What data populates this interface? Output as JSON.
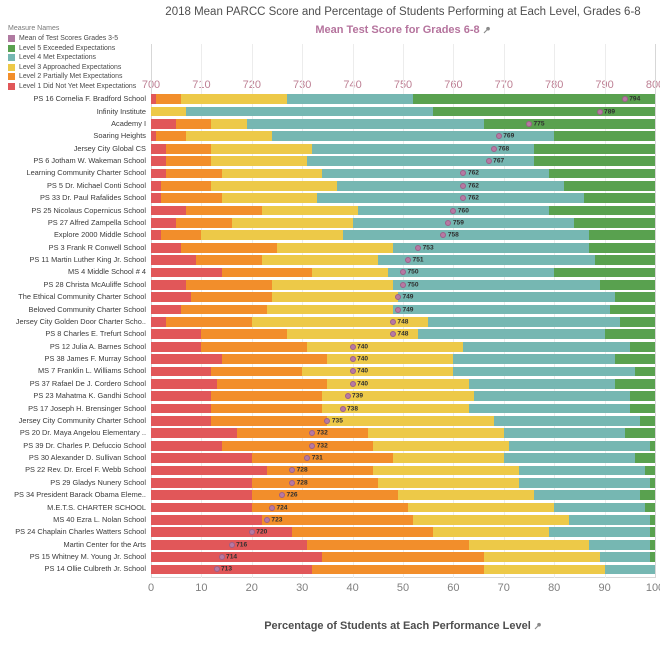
{
  "title": "2018 Mean PARCC Score and Percentage of Students Performing at Each Level, Grades 6-8",
  "legend": {
    "title": "Measure Names",
    "items": [
      {
        "label": "Mean of Test Scores Grades 3-5",
        "color": "#b07aa1"
      },
      {
        "label": "Level 5 Exceeded Expectations",
        "color": "#59a14f"
      },
      {
        "label": "Level 4 Met Expectations",
        "color": "#76b7b2"
      },
      {
        "label": "Level 3 Approached Expectations",
        "color": "#edc948"
      },
      {
        "label": "Level 2 Partially Met Expectations",
        "color": "#f28e2b"
      },
      {
        "label": "Level 1 Did Not Yet Meet Expectations",
        "color": "#e15759"
      }
    ]
  },
  "colors": {
    "level_colors": [
      "#e15759",
      "#f28e2b",
      "#edc948",
      "#76b7b2",
      "#59a14f"
    ],
    "mean_dot": "#b779a3",
    "mean_dot_border": "#9c6089",
    "top_axis_text": "#b5739d",
    "top_tick_text": "#bd7f93",
    "bottom_tick_text": "#7f7f7f"
  },
  "chart_data": {
    "type": "bar",
    "subtype": "100pct-stacked-horizontal-with-mean-score-dots",
    "title": "2018 Mean PARCC Score and Percentage of Students Performing at Each Level, Grades 6-8",
    "legend_position": "top-left",
    "grid": "on",
    "top_axis": {
      "label": "Mean Test Score for Grades 6-8",
      "range": [
        700,
        800
      ],
      "ticks": [
        700,
        710,
        720,
        730,
        740,
        750,
        760,
        770,
        780,
        790,
        800
      ]
    },
    "bottom_axis": {
      "label": "Percentage of Students at Each Performance Level",
      "range": [
        0,
        100
      ],
      "ticks": [
        0,
        10,
        20,
        30,
        40,
        50,
        60,
        70,
        80,
        90,
        100
      ]
    },
    "stack_series_order": [
      "Level 1 Did Not Yet Meet Expectations",
      "Level 2 Partially Met Expectations",
      "Level 3 Approached Expectations",
      "Level 4 Met Expectations",
      "Level 5 Exceeded Expectations"
    ],
    "dot_series": "Mean of Test Scores Grades 3-5",
    "rows": [
      {
        "school": "PS 16 Cornelia F. Bradford School",
        "mean_score": 794,
        "levels": [
          1,
          5,
          21,
          25,
          48
        ]
      },
      {
        "school": "Infinity Institute",
        "mean_score": 789,
        "levels": [
          0,
          0,
          7,
          49,
          44
        ]
      },
      {
        "school": "Academy I",
        "mean_score": 775,
        "levels": [
          5,
          7,
          7,
          47,
          34
        ]
      },
      {
        "school": "Soaring Heights",
        "mean_score": 769,
        "levels": [
          1,
          6,
          17,
          56,
          20
        ]
      },
      {
        "school": "Jersey City Global CS",
        "mean_score": 768,
        "levels": [
          3,
          9,
          20,
          44,
          24
        ]
      },
      {
        "school": "PS 6 Jotham W. Wakeman School",
        "mean_score": 767,
        "levels": [
          3,
          9,
          19,
          45,
          24
        ]
      },
      {
        "school": "Learning Community Charter School",
        "mean_score": 762,
        "levels": [
          3,
          11,
          20,
          45,
          21
        ]
      },
      {
        "school": "PS 5 Dr. Michael Conti School",
        "mean_score": 762,
        "levels": [
          2,
          10,
          25,
          45,
          18
        ]
      },
      {
        "school": "PS 33 Dr. Paul Rafalides School",
        "mean_score": 762,
        "levels": [
          2,
          12,
          19,
          53,
          14
        ]
      },
      {
        "school": "PS 25 Nicolaus Copernicus School",
        "mean_score": 760,
        "levels": [
          7,
          15,
          19,
          38,
          21
        ]
      },
      {
        "school": "PS 27 Alfred Zampella School",
        "mean_score": 759,
        "levels": [
          5,
          11,
          24,
          44,
          16
        ]
      },
      {
        "school": "Explore 2000 Middle School",
        "mean_score": 758,
        "levels": [
          2,
          8,
          28,
          49,
          13
        ]
      },
      {
        "school": "PS 3 Frank R Conwell School",
        "mean_score": 753,
        "levels": [
          6,
          19,
          23,
          39,
          13
        ]
      },
      {
        "school": "PS 11 Martin Luther King Jr. School",
        "mean_score": 751,
        "levels": [
          9,
          13,
          23,
          43,
          12
        ]
      },
      {
        "school": "MS 4 Middle School # 4",
        "mean_score": 750,
        "levels": [
          14,
          18,
          15,
          33,
          20
        ]
      },
      {
        "school": "PS 28 Christa McAuliffe School",
        "mean_score": 750,
        "levels": [
          7,
          17,
          24,
          41,
          11
        ]
      },
      {
        "school": "The Ethical Community Charter School",
        "mean_score": 749,
        "levels": [
          8,
          16,
          25,
          43,
          8
        ]
      },
      {
        "school": "Beloved Community Charter School",
        "mean_score": 749,
        "levels": [
          6,
          17,
          25,
          43,
          9
        ]
      },
      {
        "school": "Jersey City Golden Door Charter Scho..",
        "mean_score": 748,
        "levels": [
          3,
          17,
          35,
          38,
          7
        ]
      },
      {
        "school": "PS 8 Charles E. Trefurt School",
        "mean_score": 748,
        "levels": [
          10,
          17,
          26,
          37,
          10
        ]
      },
      {
        "school": "PS 12 Julia A. Barnes School",
        "mean_score": 740,
        "levels": [
          10,
          21,
          31,
          33,
          5
        ]
      },
      {
        "school": "PS 38 James F. Murray School",
        "mean_score": 740,
        "levels": [
          14,
          21,
          25,
          32,
          8
        ]
      },
      {
        "school": "MS 7 Franklin L. Williams School",
        "mean_score": 740,
        "levels": [
          12,
          18,
          30,
          36,
          4
        ]
      },
      {
        "school": "PS 37 Rafael De J. Cordero School",
        "mean_score": 740,
        "levels": [
          13,
          22,
          28,
          29,
          8
        ]
      },
      {
        "school": "PS 23 Mahatma K. Gandhi School",
        "mean_score": 739,
        "levels": [
          12,
          22,
          30,
          31,
          5
        ]
      },
      {
        "school": "PS 17 Joseph H. Brensinger School",
        "mean_score": 738,
        "levels": [
          12,
          22,
          29,
          32,
          5
        ]
      },
      {
        "school": "Jersey City Community Charter School",
        "mean_score": 735,
        "levels": [
          12,
          23,
          33,
          29,
          3
        ]
      },
      {
        "school": "PS 20 Dr. Maya Angelou Elementary ..",
        "mean_score": 732,
        "levels": [
          17,
          26,
          27,
          24,
          6
        ]
      },
      {
        "school": "PS 39 Dr. Charles P. Defuccio School",
        "mean_score": 732,
        "levels": [
          14,
          30,
          27,
          28,
          1
        ]
      },
      {
        "school": "PS 30 Alexander D. Sullivan School",
        "mean_score": 731,
        "levels": [
          20,
          28,
          22,
          26,
          4
        ]
      },
      {
        "school": "PS 22 Rev. Dr. Ercel F. Webb School",
        "mean_score": 728,
        "levels": [
          23,
          21,
          29,
          25,
          2
        ]
      },
      {
        "school": "PS 29 Gladys Nunery School",
        "mean_score": 728,
        "levels": [
          20,
          25,
          28,
          26,
          1
        ]
      },
      {
        "school": "PS 34 President Barack Obama Eleme..",
        "mean_score": 726,
        "levels": [
          20,
          29,
          27,
          21,
          3
        ]
      },
      {
        "school": "M.E.T.S. CHARTER SCHOOL",
        "mean_score": 724,
        "levels": [
          20,
          31,
          29,
          18,
          2
        ]
      },
      {
        "school": "MS 40 Ezra L. Nolan School",
        "mean_score": 723,
        "levels": [
          22,
          30,
          31,
          16,
          1
        ]
      },
      {
        "school": "PS 24 Chaplain Charles Watters School",
        "mean_score": 720,
        "levels": [
          28,
          28,
          23,
          20,
          1
        ]
      },
      {
        "school": "Martin Center for the Arts",
        "mean_score": 716,
        "levels": [
          31,
          32,
          24,
          12,
          1
        ]
      },
      {
        "school": "PS 15 Whitney M. Young Jr. School",
        "mean_score": 714,
        "levels": [
          34,
          32,
          23,
          10,
          1
        ]
      },
      {
        "school": "PS 14 Ollie Culbreth Jr. School",
        "mean_score": 713,
        "levels": [
          32,
          34,
          24,
          10,
          0
        ]
      }
    ]
  }
}
